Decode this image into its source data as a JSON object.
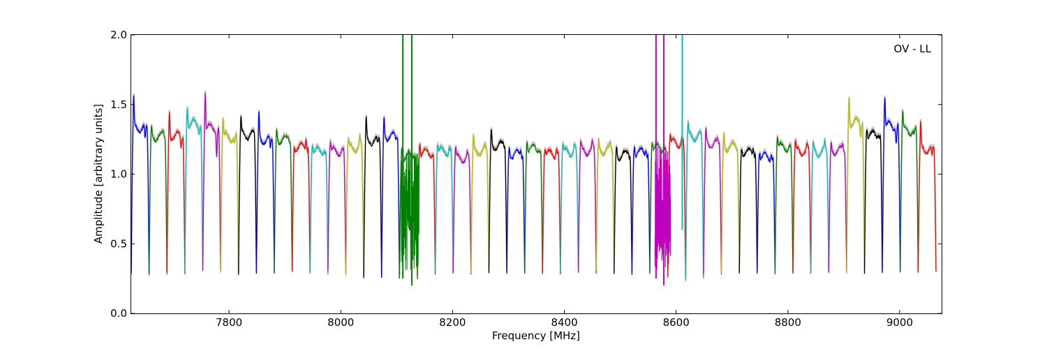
{
  "chart_data": {
    "type": "line",
    "title": "",
    "annotation": "OV - LL",
    "xlabel": "Frequency [MHz]",
    "ylabel": "Amplitude [arbitrary units]",
    "xlim": [
      7625,
      9075
    ],
    "ylim": [
      0.0,
      2.0
    ],
    "xticks": [
      7800,
      8000,
      8200,
      8400,
      8600,
      8800,
      9000
    ],
    "yticks": [
      0.0,
      0.5,
      1.0,
      1.5,
      2.0
    ],
    "xtick_labels": [
      "7800",
      "8000",
      "8200",
      "8400",
      "8600",
      "8800",
      "9000"
    ],
    "ytick_labels": [
      "0.0",
      "0.5",
      "1.0",
      "1.5",
      "2.0"
    ],
    "grid": false,
    "background_series_color": "#bfbfbf",
    "color_cycle": [
      "#0000ff",
      "#008000",
      "#ff0000",
      "#00bfbf",
      "#bf00bf",
      "#bfbf00",
      "#000000"
    ],
    "band_width_mhz": 32,
    "band_starts_mhz": [
      7625,
      7657,
      7689,
      7721,
      7753,
      7785,
      7817,
      7849,
      7881,
      7913,
      7945,
      7977,
      8009,
      8041,
      8073,
      8105,
      8137,
      8169,
      8201,
      8233,
      8265,
      8297,
      8329,
      8361,
      8393,
      8425,
      8457,
      8489,
      8521,
      8553,
      8585,
      8617,
      8649,
      8681,
      8713,
      8745,
      8777,
      8809,
      8841,
      8873,
      8905,
      8937,
      8969,
      9001,
      9033
    ],
    "band_peaks": [
      [
        1.53,
        1.23
      ],
      [
        1.33,
        1.3
      ],
      [
        1.45,
        1.2
      ],
      [
        1.5,
        1.31
      ],
      [
        1.61,
        1.15
      ],
      [
        1.4,
        1.22
      ],
      [
        1.38,
        1.28
      ],
      [
        1.42,
        1.17
      ],
      [
        1.32,
        1.27
      ],
      [
        1.2,
        1.28
      ],
      [
        1.23,
        1.19
      ],
      [
        1.24,
        1.18
      ],
      [
        1.22,
        1.25
      ],
      [
        1.38,
        1.2
      ],
      [
        1.39,
        1.25
      ],
      [
        1.2,
        1.15
      ],
      [
        1.25,
        1.15
      ],
      [
        1.22,
        1.2
      ],
      [
        1.18,
        1.14
      ],
      [
        1.24,
        1.18
      ],
      [
        1.3,
        1.21
      ],
      [
        1.2,
        1.18
      ],
      [
        1.26,
        1.2
      ],
      [
        1.19,
        1.2
      ],
      [
        1.2,
        1.21
      ],
      [
        1.21,
        1.22
      ],
      [
        1.22,
        1.21
      ],
      [
        1.2,
        1.17
      ],
      [
        1.22,
        1.19
      ],
      [
        1.25,
        1.22
      ],
      [
        1.28,
        1.26
      ],
      [
        1.35,
        1.28
      ],
      [
        1.3,
        1.23
      ],
      [
        1.28,
        1.2
      ],
      [
        1.2,
        1.21
      ],
      [
        1.18,
        1.16
      ],
      [
        1.28,
        1.2
      ],
      [
        1.22,
        1.2
      ],
      [
        1.2,
        1.21
      ],
      [
        1.22,
        1.21
      ],
      [
        1.55,
        1.28
      ],
      [
        1.35,
        1.31
      ],
      [
        1.56,
        1.23
      ],
      [
        1.44,
        1.28
      ],
      [
        1.35,
        1.1
      ]
    ],
    "band_troughs": [
      0.28,
      0.28,
      0.29,
      0.3,
      0.3,
      0.29,
      0.28,
      0.29,
      0.3,
      0.29,
      0.28,
      0.3,
      0.27,
      0.26,
      0.26,
      0.25,
      0.28,
      0.29,
      0.29,
      0.3,
      0.28,
      0.29,
      0.29,
      0.29,
      0.3,
      0.29,
      0.3,
      0.29,
      0.28,
      0.29,
      0.26,
      0.24,
      0.28,
      0.29,
      0.28,
      0.3,
      0.29,
      0.28,
      0.29,
      0.29,
      0.29,
      0.29,
      0.3,
      0.3,
      0.3
    ],
    "rfi_spikes": [
      {
        "x": 8111,
        "ymax": 2.0,
        "ymin": 0.25,
        "color": "#008000"
      },
      {
        "x": 8127,
        "ymax": 2.0,
        "ymin": 0.2,
        "color": "#008000"
      },
      {
        "x": 8564,
        "ymax": 2.0,
        "ymin": 0.25,
        "color": "#bf00bf"
      },
      {
        "x": 8578,
        "ymax": 2.0,
        "ymin": 0.2,
        "color": "#bf00bf"
      },
      {
        "x": 8611,
        "ymax": 2.0,
        "ymin": 0.6,
        "color": "#00bfbf"
      }
    ],
    "noise_bands_mhz": [
      {
        "from": 8108,
        "to": 8140,
        "color": "#008000"
      },
      {
        "from": 8562,
        "to": 8590,
        "color": "#bf00bf"
      }
    ]
  }
}
